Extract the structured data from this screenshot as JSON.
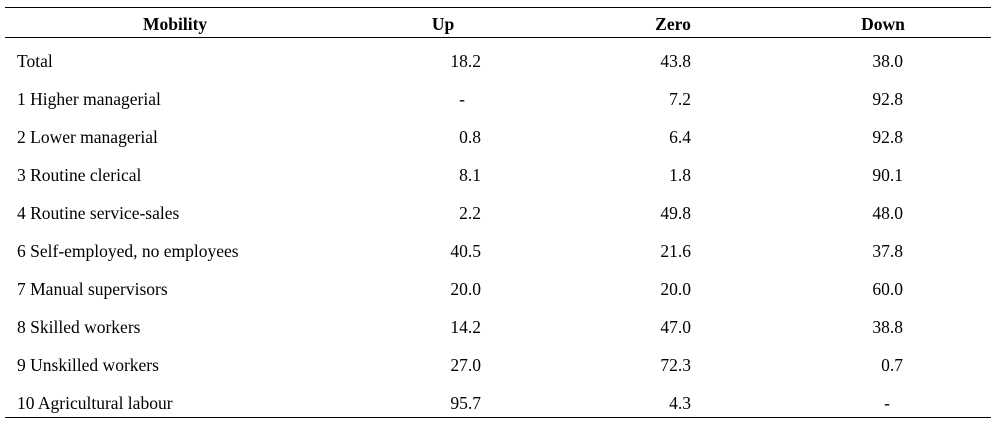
{
  "table": {
    "headers": {
      "mobility": "Mobility",
      "up": "Up",
      "zero": "Zero",
      "down": "Down"
    },
    "rows": [
      {
        "label": "Total",
        "up": "18.2",
        "zero": "43.8",
        "down": "38.0"
      },
      {
        "label": "1 Higher managerial",
        "up": "-",
        "zero": "7.2",
        "down": "92.8"
      },
      {
        "label": "2 Lower managerial",
        "up": "0.8",
        "zero": "6.4",
        "down": "92.8"
      },
      {
        "label": "3 Routine clerical",
        "up": "8.1",
        "zero": "1.8",
        "down": "90.1"
      },
      {
        "label": "4 Routine service-sales",
        "up": "2.2",
        "zero": "49.8",
        "down": "48.0"
      },
      {
        "label": "6 Self-employed, no employees",
        "up": "40.5",
        "zero": "21.6",
        "down": "37.8"
      },
      {
        "label": "7 Manual supervisors",
        "up": "20.0",
        "zero": "20.0",
        "down": "60.0"
      },
      {
        "label": "8 Skilled workers",
        "up": "14.2",
        "zero": "47.0",
        "down": "38.8"
      },
      {
        "label": "9 Unskilled workers",
        "up": "27.0",
        "zero": "72.3",
        "down": "0.7"
      },
      {
        "label": "10 Agricultural labour",
        "up": "95.7",
        "zero": "4.3",
        "down": "-"
      }
    ]
  }
}
